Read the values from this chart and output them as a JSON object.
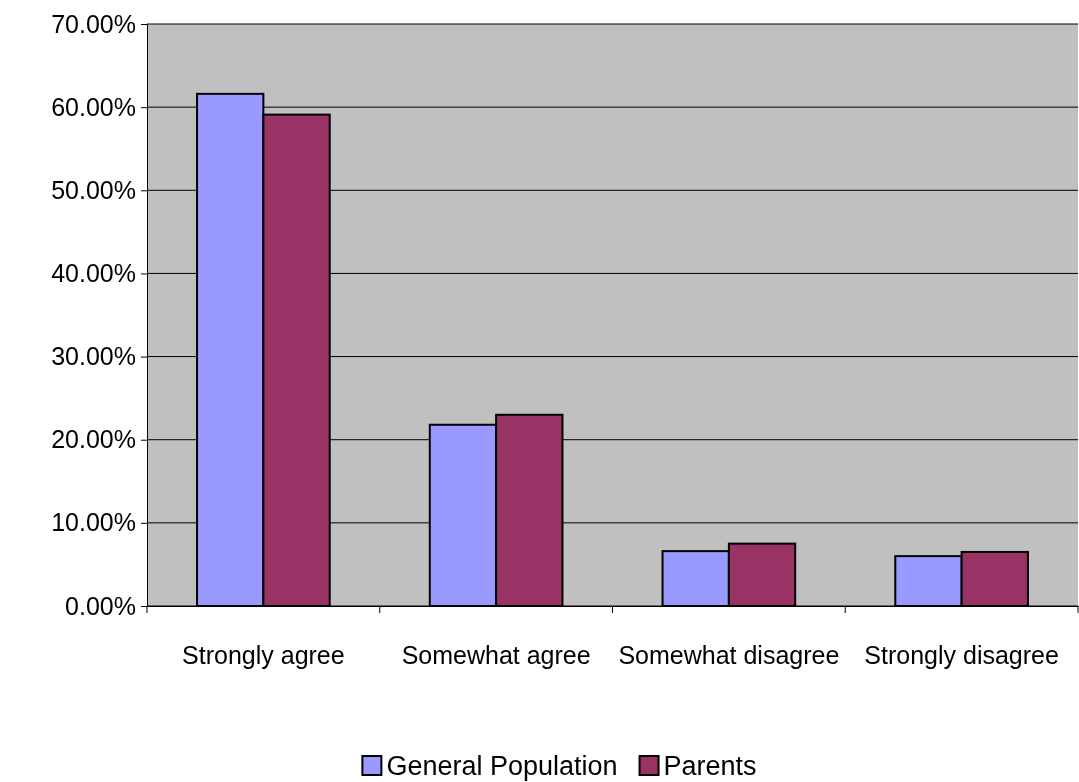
{
  "chart_data": {
    "type": "bar",
    "categories": [
      "Strongly agree",
      "Somewhat agree",
      "Somewhat disagree",
      "Strongly disagree"
    ],
    "series": [
      {
        "name": "General Population",
        "color": "#9999ff",
        "values": [
          61.6,
          21.8,
          6.6,
          6.0
        ]
      },
      {
        "name": "Parents",
        "color": "#993366",
        "values": [
          59.1,
          23.0,
          7.5,
          6.5
        ]
      }
    ],
    "ylim": [
      0,
      70
    ],
    "yticks": [
      {
        "value": 0,
        "label": "0.00%"
      },
      {
        "value": 10,
        "label": "10.00%"
      },
      {
        "value": 20,
        "label": "20.00%"
      },
      {
        "value": 30,
        "label": "30.00%"
      },
      {
        "value": 40,
        "label": "40.00%"
      },
      {
        "value": 50,
        "label": "50.00%"
      },
      {
        "value": 60,
        "label": "60.00%"
      },
      {
        "value": 70,
        "label": "70.00%"
      }
    ],
    "grid": "y",
    "legend": "bottom"
  }
}
